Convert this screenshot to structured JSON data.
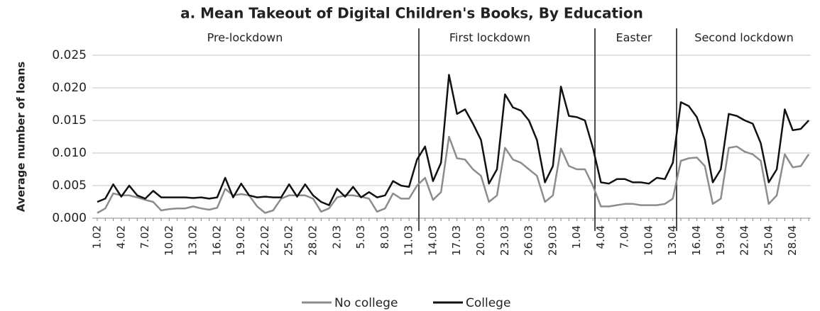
{
  "chart_data": {
    "type": "line",
    "title": "a. Mean Takeout of Digital Children's Books, By Education",
    "y_label": "Average number of loans",
    "annotations": [
      "Pre-lockdown",
      "First lockdown",
      "Easter",
      "Second lockdown"
    ],
    "categories": [
      "1.02",
      null,
      null,
      "4.02",
      null,
      null,
      "7.02",
      null,
      null,
      "10.02",
      null,
      null,
      "13.02",
      null,
      null,
      "16.02",
      null,
      null,
      "19.02",
      null,
      null,
      "22.02",
      null,
      null,
      "25.02",
      null,
      null,
      "28.02",
      null,
      null,
      "2.03",
      null,
      null,
      "5.03",
      null,
      null,
      "8.03",
      null,
      null,
      "11.03",
      null,
      null,
      "14.03",
      null,
      null,
      "17.03",
      null,
      null,
      "20.03",
      null,
      null,
      "23.03",
      null,
      null,
      "26.03",
      null,
      null,
      "29.03",
      null,
      null,
      "1.04",
      null,
      null,
      "4.04",
      null,
      null,
      "7.04",
      null,
      null,
      "10.04",
      null,
      null,
      "13.04",
      null,
      null,
      "16.04",
      null,
      null,
      "19.04",
      null,
      null,
      "22.04",
      null,
      null,
      "25.04",
      null,
      null,
      "28.04",
      null,
      null
    ],
    "series": [
      {
        "name": "No college",
        "color": "#8c8c8c",
        "values": [
          0.0008,
          0.0015,
          0.0038,
          0.0035,
          0.0035,
          0.0032,
          0.0028,
          0.0025,
          0.0012,
          0.0014,
          0.0015,
          0.0015,
          0.0018,
          0.0015,
          0.0013,
          0.0016,
          0.0045,
          0.0035,
          0.0037,
          0.0035,
          0.0018,
          0.0008,
          0.0012,
          0.003,
          0.0035,
          0.0035,
          0.0035,
          0.003,
          0.001,
          0.0015,
          0.0032,
          0.0035,
          0.0035,
          0.0033,
          0.003,
          0.001,
          0.0015,
          0.0038,
          0.003,
          0.003,
          0.005,
          0.0062,
          0.0028,
          0.004,
          0.0125,
          0.0092,
          0.009,
          0.0075,
          0.0065,
          0.0025,
          0.0035,
          0.0108,
          0.009,
          0.0085,
          0.0075,
          0.0065,
          0.0025,
          0.0035,
          0.0107,
          0.008,
          0.0075,
          0.0075,
          0.005,
          0.0018,
          0.0018,
          0.002,
          0.0022,
          0.0022,
          0.002,
          0.002,
          0.002,
          0.0022,
          0.003,
          0.0088,
          0.0092,
          0.0093,
          0.008,
          0.0022,
          0.003,
          0.0108,
          0.011,
          0.0102,
          0.0098,
          0.0088,
          0.0022,
          0.0035,
          0.0098,
          0.0078,
          0.008,
          0.0098
        ]
      },
      {
        "name": "College",
        "color": "#111111",
        "values": [
          0.0025,
          0.003,
          0.0052,
          0.0033,
          0.005,
          0.0035,
          0.003,
          0.0042,
          0.0032,
          0.0032,
          0.0032,
          0.0032,
          0.0031,
          0.0032,
          0.003,
          0.0032,
          0.0062,
          0.0032,
          0.0053,
          0.0035,
          0.0032,
          0.0033,
          0.0032,
          0.0032,
          0.0052,
          0.0033,
          0.0052,
          0.0035,
          0.0025,
          0.002,
          0.0045,
          0.0033,
          0.0048,
          0.0032,
          0.004,
          0.0032,
          0.0035,
          0.0057,
          0.005,
          0.0048,
          0.009,
          0.011,
          0.0057,
          0.0085,
          0.022,
          0.016,
          0.0167,
          0.0145,
          0.012,
          0.0053,
          0.0075,
          0.019,
          0.017,
          0.0165,
          0.015,
          0.012,
          0.0055,
          0.008,
          0.0202,
          0.0157,
          0.0155,
          0.015,
          0.0108,
          0.0055,
          0.0053,
          0.006,
          0.006,
          0.0055,
          0.0055,
          0.0053,
          0.0062,
          0.006,
          0.0085,
          0.0178,
          0.0172,
          0.0155,
          0.012,
          0.0055,
          0.0075,
          0.016,
          0.0157,
          0.015,
          0.0145,
          0.0115,
          0.0055,
          0.0075,
          0.0167,
          0.0135,
          0.0137,
          0.015
        ]
      }
    ],
    "ylim": [
      0,
      0.025
    ],
    "yticks": [
      {
        "value": 0,
        "label": "0.000"
      },
      {
        "value": 0.005,
        "label": "0.005"
      },
      {
        "value": 0.01,
        "label": "0.010"
      },
      {
        "value": 0.015,
        "label": "0.015"
      },
      {
        "value": 0.02,
        "label": "0.020"
      },
      {
        "value": 0.025,
        "label": "0.025"
      }
    ],
    "grid": true
  }
}
